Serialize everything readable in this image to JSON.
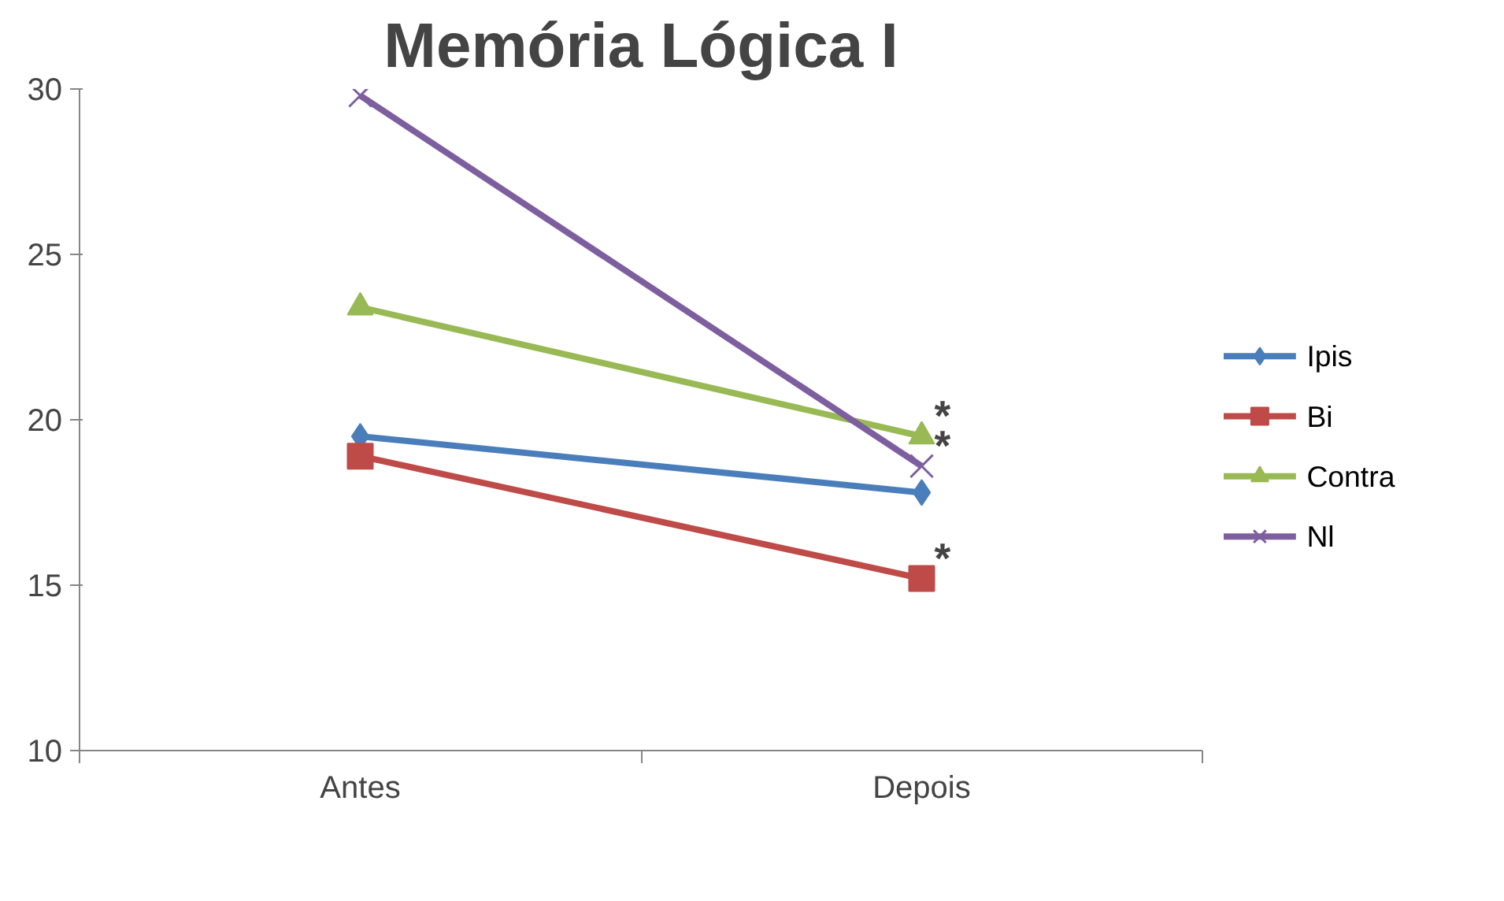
{
  "chart_data": {
    "type": "line",
    "title": "Memória Lógica I",
    "categories": [
      "Antes",
      "Depois"
    ],
    "series": [
      {
        "name": "Ipis",
        "color": "#4a7ebb",
        "marker": "diamond",
        "values": [
          19.5,
          17.8
        ]
      },
      {
        "name": "Bi",
        "color": "#be4b48",
        "marker": "square",
        "values": [
          18.9,
          15.2
        ]
      },
      {
        "name": "Contra",
        "color": "#98b954",
        "marker": "triangle",
        "values": [
          23.4,
          19.5
        ]
      },
      {
        "name": "Nl",
        "color": "#7d5fa0",
        "marker": "x",
        "values": [
          29.8,
          18.6
        ]
      }
    ],
    "ylim": [
      10,
      30
    ],
    "yticks": [
      10,
      15,
      20,
      25,
      30
    ],
    "grid": false,
    "legend": "right",
    "annotations": [
      {
        "text": "*",
        "x": "Depois",
        "y": 19.5
      },
      {
        "text": "*",
        "x": "Depois",
        "y": 18.6
      },
      {
        "text": "*",
        "x": "Depois",
        "y": 15.2
      }
    ]
  }
}
